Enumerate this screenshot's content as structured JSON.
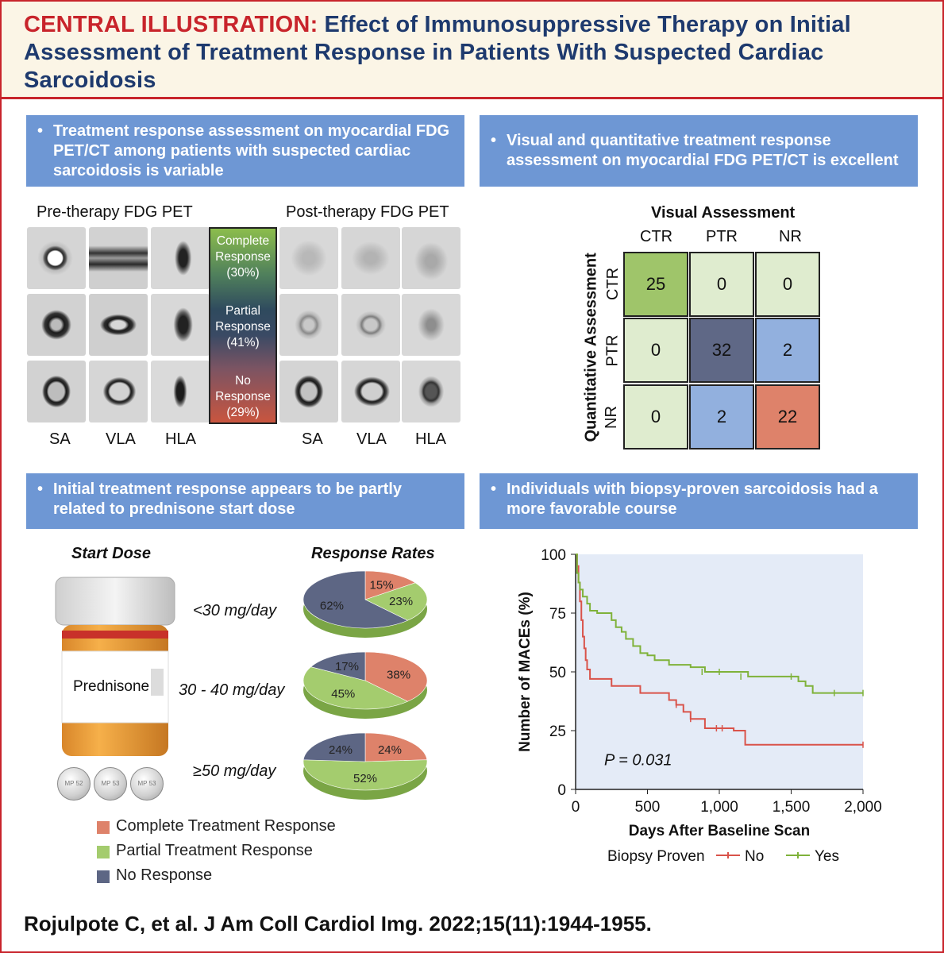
{
  "header": {
    "lead": "CENTRAL ILLUSTRATION:",
    "title": "Effect of Immunosuppressive Therapy on Initial Assessment of Treatment Response in Patients With Suspected Cardiac Sarcoidosis"
  },
  "panels": {
    "top_left": {
      "text": "Treatment response assessment on myocardial FDG PET/CT among patients with suspected cardiac sarcoidosis is variable"
    },
    "top_right": {
      "text": "Visual and quantitative treatment response assessment on myocardial FDG PET/CT is excellent"
    },
    "bottom_left": {
      "text": "Initial treatment response appears to be partly related to prednisone start dose"
    },
    "bottom_right": {
      "text": "Individuals with biopsy-proven sarcoidosis had a more favorable course"
    }
  },
  "pet": {
    "pre_title": "Pre-therapy FDG PET",
    "post_title": "Post-therapy FDG PET",
    "views": [
      "SA",
      "VLA",
      "HLA"
    ],
    "scale": [
      {
        "line1": "Complete",
        "line2": "Response",
        "pct": "(30%)"
      },
      {
        "line1": "Partial",
        "line2": "Response",
        "pct": "(41%)"
      },
      {
        "line1": "No",
        "line2": "Response",
        "pct": "(29%)"
      }
    ]
  },
  "matrix": {
    "title": "Visual Assessment",
    "col_labels": [
      "CTR",
      "PTR",
      "NR"
    ],
    "row_labels": [
      "CTR",
      "PTR",
      "NR"
    ],
    "y_title": "Quantitative Assessment",
    "values": [
      [
        25,
        0,
        0
      ],
      [
        0,
        32,
        2
      ],
      [
        0,
        2,
        22
      ]
    ],
    "colors": {
      "light": "#dfeccf",
      "green": "#9fc56a",
      "navy": "#5f6886",
      "blue": "#92b0de",
      "orange": "#de826a"
    }
  },
  "dose": {
    "start_title": "Start Dose",
    "rates_title": "Response Rates",
    "bottle_label": "Prednisone",
    "pill_text": [
      "MP 52",
      "MP 53",
      "MP 53"
    ],
    "groups": [
      {
        "label": "<30 mg/day",
        "complete": 15,
        "partial": 23,
        "none": 62,
        "labels": [
          "15%",
          "23%",
          "62%"
        ]
      },
      {
        "label": "30 - 40 mg/day",
        "complete": 38,
        "partial": 45,
        "none": 17,
        "labels": [
          "38%",
          "45%",
          "17%"
        ]
      },
      {
        "label": "≥50 mg/day",
        "complete": 24,
        "partial": 52,
        "none": 24,
        "labels": [
          "24%",
          "52%",
          "24%"
        ]
      }
    ],
    "legend": [
      {
        "label": "Complete Treatment Response",
        "color": "#de826a"
      },
      {
        "label": "Partial Treatment Response",
        "color": "#a4cc6e"
      },
      {
        "label": "No Response",
        "color": "#5d6684"
      }
    ]
  },
  "chart_data": {
    "type": "line",
    "title": "",
    "xlabel": "Days After Baseline Scan",
    "ylabel": "Number of MACEs (%)",
    "xlim": [
      0,
      2000
    ],
    "ylim": [
      0,
      100
    ],
    "x_ticks": [
      "0",
      "500",
      "1,000",
      "1,500",
      "2,000"
    ],
    "y_ticks": [
      "0",
      "25",
      "50",
      "75",
      "100"
    ],
    "annotation": "P = 0.031",
    "legend_title": "Biopsy Proven",
    "series": [
      {
        "name": "No",
        "color": "#d9534a",
        "x": [
          0,
          10,
          20,
          30,
          40,
          50,
          60,
          70,
          80,
          100,
          150,
          250,
          300,
          450,
          500,
          650,
          700,
          750,
          800,
          900,
          1000,
          1100,
          1180,
          2000
        ],
        "y": [
          100,
          95,
          88,
          80,
          72,
          65,
          60,
          55,
          51,
          47,
          47,
          44,
          44,
          41,
          41,
          38,
          36,
          33,
          30,
          26,
          26,
          25,
          19,
          19
        ]
      },
      {
        "name": "Yes",
        "color": "#7fb23a",
        "x": [
          0,
          10,
          20,
          30,
          50,
          80,
          100,
          150,
          200,
          250,
          280,
          320,
          350,
          400,
          450,
          500,
          550,
          650,
          800,
          900,
          1000,
          1200,
          1500,
          1550,
          1600,
          1650,
          1800,
          2000
        ],
        "y": [
          100,
          92,
          88,
          85,
          82,
          79,
          76,
          75,
          75,
          72,
          69,
          67,
          64,
          61,
          58,
          57,
          55,
          53,
          52,
          50,
          50,
          48,
          48,
          46,
          44,
          41,
          41,
          41
        ]
      }
    ]
  },
  "citation": "Rojulpote C, et al. J Am Coll Cardiol Img. 2022;15(11):1944-1955."
}
